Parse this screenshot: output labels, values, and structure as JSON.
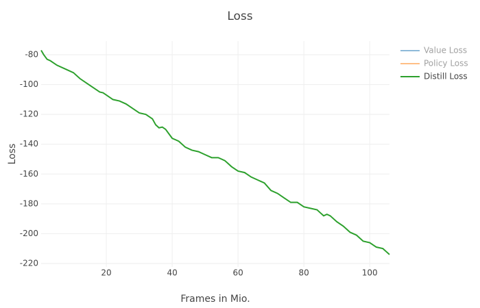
{
  "chart_data": {
    "type": "line",
    "title": "Loss",
    "x_label": "Frames in Mio.",
    "y_label": "Loss",
    "xlim": [
      0.2,
      106
    ],
    "ylim": [
      -222.3,
      -70.8
    ],
    "xticks": [
      20,
      40,
      60,
      80,
      100
    ],
    "yticks": [
      -80,
      -100,
      -120,
      -140,
      -160,
      -180,
      -200,
      -220
    ],
    "grid": true,
    "legend": "top-right",
    "series": [
      {
        "name": "Value Loss",
        "color": "#1f77b4",
        "visible": false,
        "x": [],
        "values": []
      },
      {
        "name": "Policy Loss",
        "color": "#ff7f0e",
        "visible": false,
        "x": [],
        "values": []
      },
      {
        "name": "Distill Loss",
        "color": "#2ca02c",
        "visible": true,
        "x": [
          0.2,
          1,
          2,
          3,
          5,
          8,
          10,
          12,
          14,
          16,
          18,
          19,
          20,
          22,
          24,
          26,
          28,
          30,
          32,
          34,
          35,
          36,
          37,
          38,
          39,
          40,
          42,
          44,
          46,
          48,
          50,
          52,
          54,
          55,
          56,
          57,
          58,
          60,
          62,
          64,
          66,
          67,
          68,
          70,
          72,
          74,
          76,
          78,
          80,
          82,
          84,
          85,
          86,
          87,
          88,
          90,
          92,
          94,
          95,
          96,
          97,
          98,
          100,
          102,
          104,
          105,
          106
        ],
        "values": [
          -77,
          -80,
          -83,
          -84,
          -87,
          -90,
          -92,
          -96,
          -99,
          -102,
          -105,
          -105.5,
          -107,
          -110,
          -111,
          -113,
          -116,
          -119,
          -120,
          -123,
          -127,
          -129,
          -128.5,
          -130,
          -133,
          -136,
          -138,
          -142,
          -144,
          -145,
          -147,
          -149,
          -149,
          -150,
          -151,
          -153,
          -155,
          -158,
          -159,
          -162,
          -164,
          -165,
          -166,
          -171,
          -173,
          -176,
          -179,
          -179,
          -182,
          -183,
          -184,
          -186,
          -188,
          -187,
          -188,
          -192,
          -195,
          -199,
          -200,
          -201,
          -203,
          -205,
          -206,
          -209,
          -210,
          -212,
          -214
        ]
      }
    ]
  }
}
